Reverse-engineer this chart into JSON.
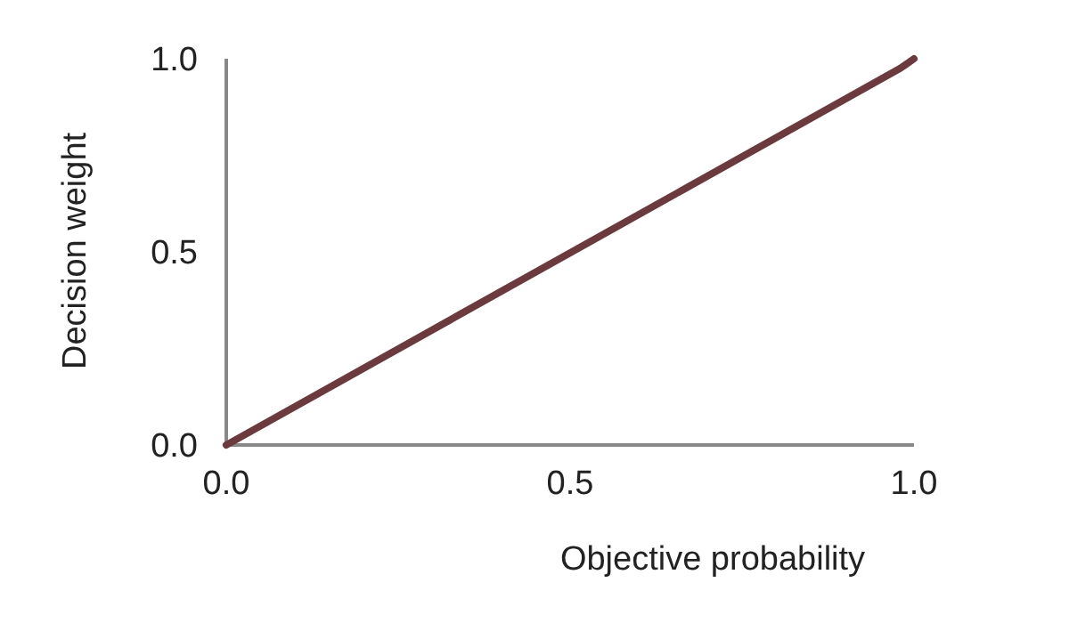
{
  "chart_data": {
    "type": "line",
    "xlabel": "Objective probability",
    "ylabel": "Decision weight",
    "x": [
      0,
      0.98,
      1
    ],
    "series": [
      {
        "color": "#6b3a3e",
        "values": [
          0,
          0.975,
          1
        ]
      }
    ],
    "xlim": [
      0,
      1
    ],
    "ylim": [
      0,
      1
    ],
    "xticks": [
      {
        "value": 0,
        "label": "0.0"
      },
      {
        "value": 0.5,
        "label": "0.5"
      },
      {
        "value": 1,
        "label": "1.0"
      }
    ],
    "yticks": [
      {
        "value": 0,
        "label": "0.0"
      },
      {
        "value": 0.5,
        "label": "0.5"
      },
      {
        "value": 1,
        "label": "1.0"
      }
    ],
    "grid": false,
    "marker": "none",
    "line_style": "solid"
  }
}
